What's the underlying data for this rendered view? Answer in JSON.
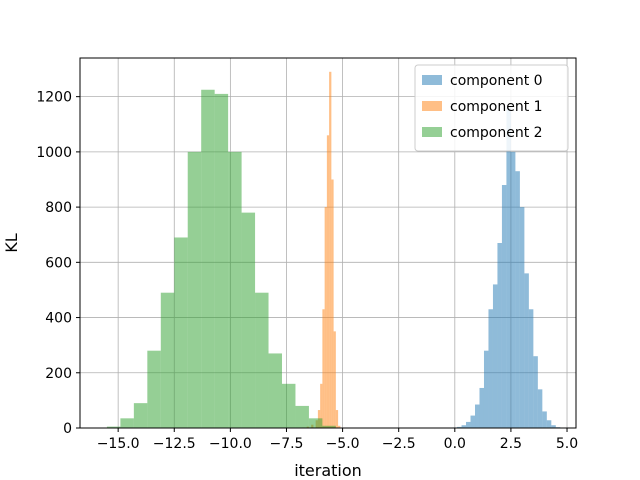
{
  "chart_data": {
    "type": "bar",
    "subtype": "histogram",
    "title": "",
    "xlabel": "iteration",
    "ylabel": "KL",
    "xlim": [
      -16.7,
      5.4
    ],
    "ylim": [
      0,
      1340
    ],
    "xticks": [
      -15.0,
      -12.5,
      -10.0,
      -7.5,
      -5.0,
      -2.5,
      0.0,
      2.5,
      5.0
    ],
    "xtick_labels": [
      "−15.0",
      "−12.5",
      "−10.0",
      "−7.5",
      "−5.0",
      "−2.5",
      "0.0",
      "2.5",
      "5.0"
    ],
    "yticks": [
      0,
      200,
      400,
      600,
      800,
      1000,
      1200
    ],
    "ytick_labels": [
      "0",
      "200",
      "400",
      "600",
      "800",
      "1000",
      "1200"
    ],
    "grid": true,
    "legend_position": "top-right",
    "series": [
      {
        "name": "component 0",
        "color": "#1f77b4",
        "alpha": 0.5,
        "bin_width": 0.2,
        "bins": [
          [
            -0.1,
            2
          ],
          [
            0.1,
            4
          ],
          [
            0.3,
            10
          ],
          [
            0.5,
            22
          ],
          [
            0.7,
            45
          ],
          [
            0.9,
            85
          ],
          [
            1.1,
            145
          ],
          [
            1.3,
            280
          ],
          [
            1.5,
            430
          ],
          [
            1.7,
            520
          ],
          [
            1.9,
            670
          ],
          [
            2.1,
            880
          ],
          [
            2.3,
            1160
          ],
          [
            2.5,
            1000
          ],
          [
            2.7,
            930
          ],
          [
            2.9,
            800
          ],
          [
            3.1,
            560
          ],
          [
            3.3,
            430
          ],
          [
            3.5,
            260
          ],
          [
            3.7,
            140
          ],
          [
            3.9,
            60
          ],
          [
            4.1,
            28
          ],
          [
            4.3,
            10
          ],
          [
            4.5,
            3
          ]
        ]
      },
      {
        "name": "component 1",
        "color": "#ff7f0e",
        "alpha": 0.5,
        "bin_width": 0.1,
        "bins": [
          [
            -6.8,
            2
          ],
          [
            -6.6,
            5
          ],
          [
            -6.4,
            12
          ],
          [
            -6.2,
            28
          ],
          [
            -6.1,
            65
          ],
          [
            -6.0,
            160
          ],
          [
            -5.9,
            430
          ],
          [
            -5.8,
            800
          ],
          [
            -5.7,
            1060
          ],
          [
            -5.6,
            1290
          ],
          [
            -5.5,
            900
          ],
          [
            -5.4,
            350
          ],
          [
            -5.3,
            65
          ],
          [
            -5.2,
            8
          ]
        ]
      },
      {
        "name": "component 2",
        "color": "#2ca02c",
        "alpha": 0.5,
        "bin_width": 0.6,
        "bins": [
          [
            -15.5,
            5
          ],
          [
            -14.9,
            35
          ],
          [
            -14.3,
            90
          ],
          [
            -13.7,
            280
          ],
          [
            -13.1,
            490
          ],
          [
            -12.5,
            690
          ],
          [
            -11.9,
            1000
          ],
          [
            -11.3,
            1225
          ],
          [
            -10.7,
            1210
          ],
          [
            -10.1,
            1000
          ],
          [
            -9.5,
            780
          ],
          [
            -8.9,
            490
          ],
          [
            -8.3,
            270
          ],
          [
            -7.7,
            160
          ],
          [
            -7.1,
            80
          ],
          [
            -6.5,
            35
          ],
          [
            -5.9,
            8
          ]
        ]
      }
    ]
  }
}
